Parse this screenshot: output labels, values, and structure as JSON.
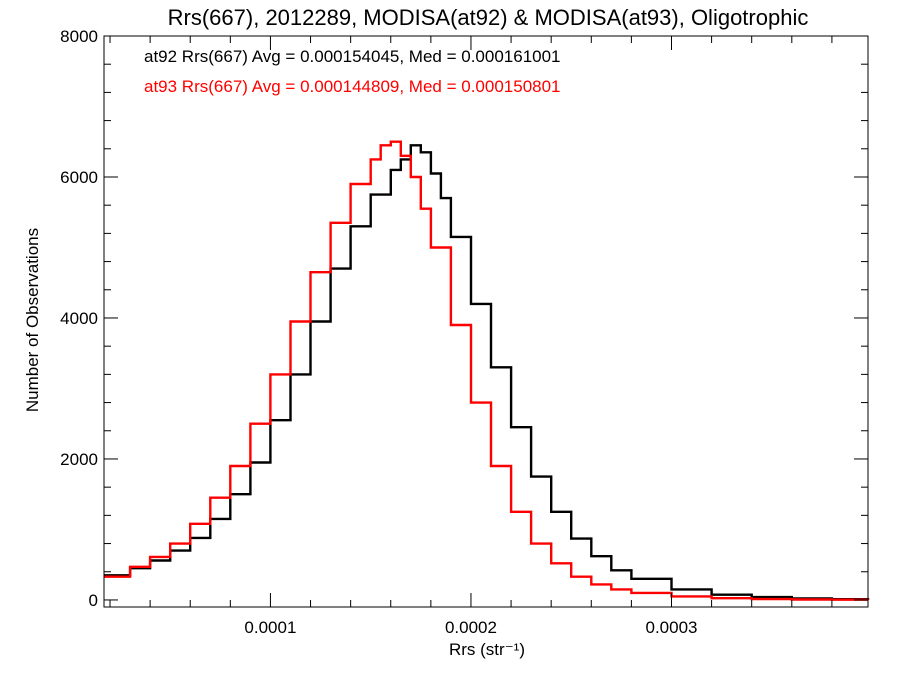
{
  "chart_data": {
    "type": "line",
    "step": true,
    "title": "Rrs(667), 2012289, MODISA(at92) & MODISA(at93), Oligotrophic",
    "xlabel": "Rrs (str⁻¹)",
    "ylabel": "Number of Observations",
    "xlim": [
      1.7e-05,
      0.000398
    ],
    "ylim": [
      -100,
      8000
    ],
    "xticks": [
      0.0001,
      0.0002,
      0.0003
    ],
    "xtick_labels": [
      "0.0001",
      "0.0002",
      "0.0003"
    ],
    "yticks": [
      0,
      2000,
      4000,
      6000,
      8000
    ],
    "ytick_labels": [
      "0",
      "2000",
      "4000",
      "6000",
      "8000"
    ],
    "grid": false,
    "annotations": [
      {
        "text": "at92 Rrs(667) Avg = 0.000154045, Med = 0.000161001",
        "color": "#000000"
      },
      {
        "text": "at93 Rrs(667) Avg = 0.000144809, Med = 0.000150801",
        "color": "#ff0000"
      }
    ],
    "series": [
      {
        "color": "#000000",
        "x": [
          1.7e-05,
          3e-05,
          4e-05,
          5e-05,
          6e-05,
          7e-05,
          8e-05,
          9e-05,
          0.0001,
          0.00011,
          0.00012,
          0.00013,
          0.00014,
          0.00015,
          0.00016,
          0.000165,
          0.00017,
          0.000175,
          0.00018,
          0.000185,
          0.00019,
          0.0002,
          0.00021,
          0.00022,
          0.00023,
          0.00024,
          0.00025,
          0.00026,
          0.00027,
          0.00028,
          0.0003,
          0.00032,
          0.00034,
          0.00036,
          0.00038,
          0.000398
        ],
        "values": [
          350,
          450,
          560,
          700,
          880,
          1150,
          1500,
          1950,
          2550,
          3200,
          3950,
          4700,
          5300,
          5750,
          6100,
          6250,
          6450,
          6350,
          6050,
          5700,
          5150,
          4200,
          3300,
          2450,
          1750,
          1250,
          870,
          620,
          420,
          300,
          150,
          75,
          40,
          20,
          10,
          5
        ]
      },
      {
        "color": "#ff0000",
        "x": [
          1.7e-05,
          3e-05,
          4e-05,
          5e-05,
          6e-05,
          7e-05,
          8e-05,
          9e-05,
          0.0001,
          0.00011,
          0.00012,
          0.00013,
          0.00014,
          0.00015,
          0.000155,
          0.00016,
          0.000165,
          0.00017,
          0.000175,
          0.00018,
          0.00019,
          0.0002,
          0.00021,
          0.00022,
          0.00023,
          0.00024,
          0.00025,
          0.00026,
          0.00027,
          0.00028,
          0.0003,
          0.00032,
          0.00034,
          0.00036,
          0.00038,
          0.000398
        ],
        "values": [
          330,
          470,
          610,
          800,
          1080,
          1450,
          1900,
          2500,
          3200,
          3950,
          4650,
          5350,
          5900,
          6250,
          6450,
          6500,
          6300,
          6000,
          5550,
          5000,
          3900,
          2800,
          1900,
          1250,
          800,
          520,
          330,
          220,
          150,
          100,
          50,
          25,
          12,
          6,
          3,
          2
        ]
      }
    ]
  }
}
